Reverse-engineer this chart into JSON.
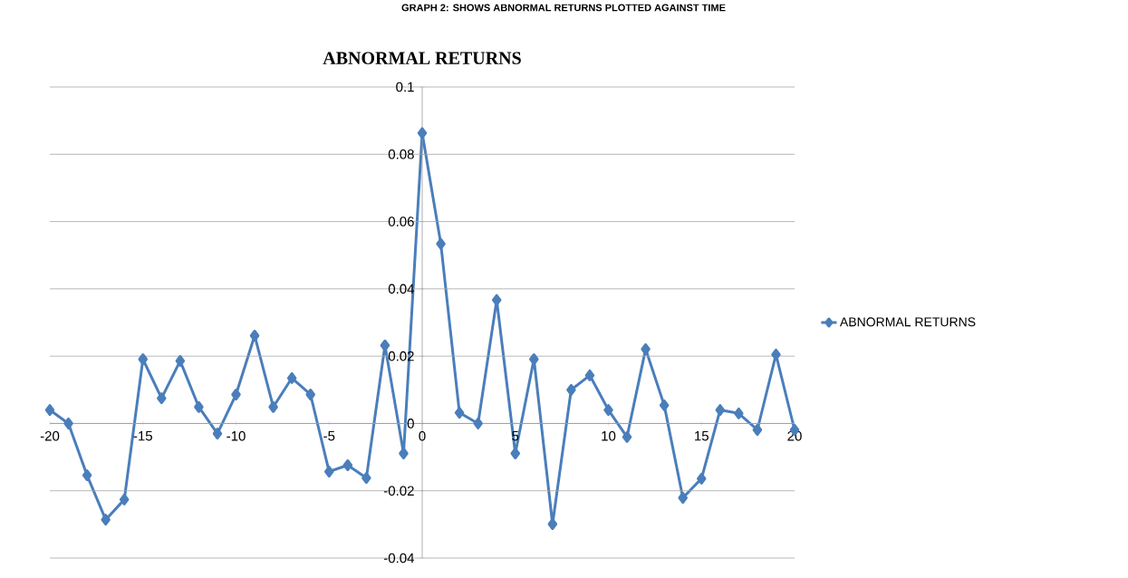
{
  "chart_data": {
    "type": "line",
    "title": "ABNORMAL RETURNS",
    "annotations": [
      "GRAPH 2: SHOWS ABNORMAL RETURNS PLOTTED AGAINST TIME"
    ],
    "x": [
      -20,
      -19,
      -18,
      -17,
      -16,
      -15,
      -14,
      -13,
      -12,
      -11,
      -10,
      -9,
      -8,
      -7,
      -6,
      -5,
      -4,
      -3,
      -2,
      -1,
      0,
      1,
      2,
      3,
      4,
      5,
      6,
      7,
      8,
      9,
      10,
      11,
      12,
      13,
      14,
      15,
      16,
      17,
      18,
      19,
      20
    ],
    "series": [
      {
        "name": "ABNORMAL RETURNS",
        "color": "#4a7ebb",
        "values": [
          0.004,
          0.0,
          -0.0154,
          -0.0286,
          -0.0226,
          0.0191,
          0.0075,
          0.0186,
          0.0049,
          -0.003,
          0.0086,
          0.0261,
          0.0049,
          0.0135,
          0.0086,
          -0.0143,
          -0.0124,
          -0.0162,
          0.0232,
          -0.0089,
          0.0863,
          0.0534,
          0.0032,
          0.0,
          0.0367,
          -0.0089,
          0.0191,
          -0.0299,
          0.01,
          0.0143,
          0.004,
          -0.004,
          0.0221,
          0.0054,
          -0.0221,
          -0.0164,
          0.004,
          0.003,
          -0.0019,
          0.0205,
          -0.0019
        ]
      }
    ],
    "xlim": [
      -20,
      20
    ],
    "ylim": [
      -0.04,
      0.1
    ],
    "xticks": [
      -20,
      -15,
      -10,
      -5,
      0,
      5,
      10,
      15,
      20
    ],
    "yticks": [
      -0.04,
      -0.02,
      0,
      0.02,
      0.04,
      0.06,
      0.08,
      0.1
    ],
    "grid": "y",
    "legend": "right",
    "marker": "diamond",
    "line_style": "solid"
  }
}
